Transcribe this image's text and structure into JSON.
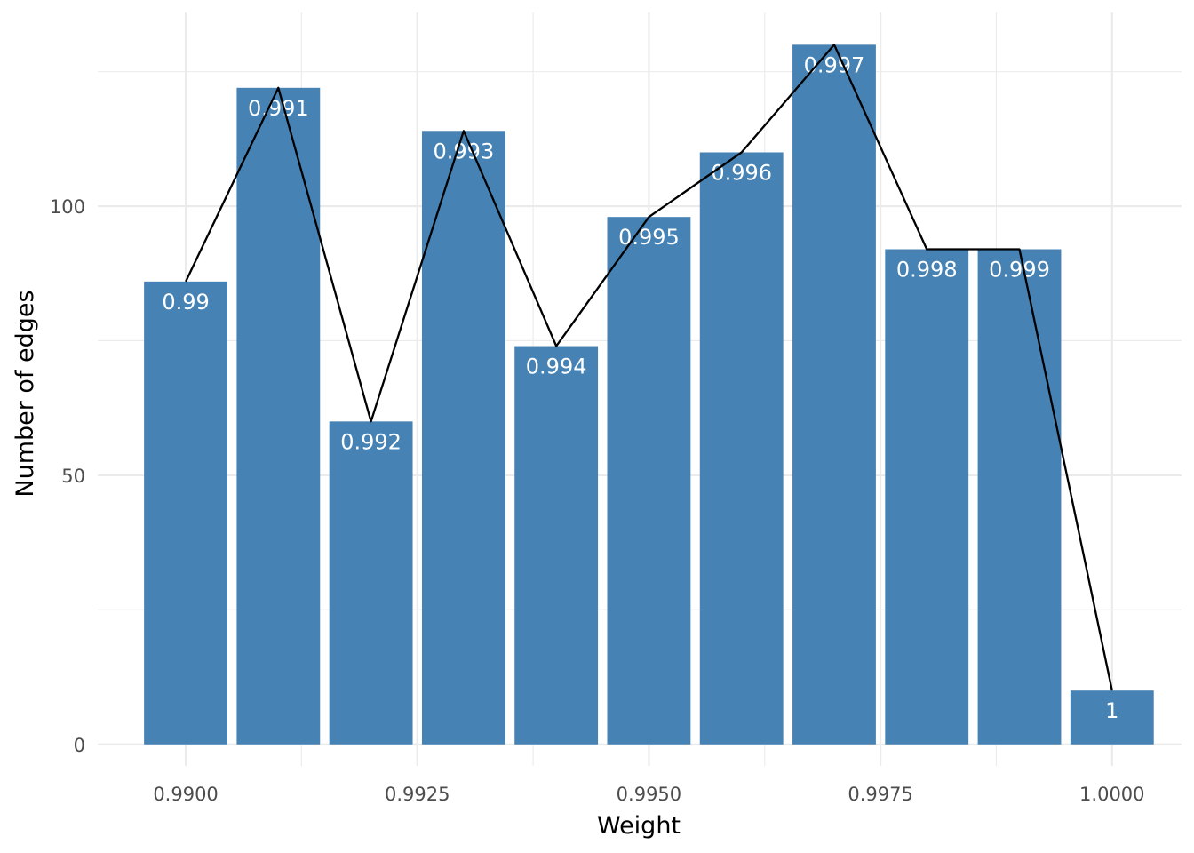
{
  "chart_data": {
    "type": "bar",
    "title": "",
    "xlabel": "Weight",
    "ylabel": "Number of edges",
    "x": [
      0.99,
      0.991,
      0.992,
      0.993,
      0.994,
      0.995,
      0.996,
      0.997,
      0.998,
      0.999,
      1.0
    ],
    "values": [
      86,
      122,
      60,
      114,
      74,
      98,
      110,
      130,
      92,
      92,
      10
    ],
    "bar_labels": [
      "0.99",
      "0.991",
      "0.992",
      "0.993",
      "0.994",
      "0.995",
      "0.996",
      "0.997",
      "0.998",
      "0.999",
      "1"
    ],
    "line_values": [
      86,
      122,
      60,
      114,
      74,
      98,
      110,
      130,
      92,
      92,
      10
    ],
    "xlim": [
      0.98905,
      1.00075
    ],
    "ylim": [
      -4,
      136
    ],
    "x_ticks": [
      0.99,
      0.9925,
      0.995,
      0.9975,
      1.0
    ],
    "x_tick_labels": [
      "0.9900",
      "0.9925",
      "0.9950",
      "0.9975",
      "1.0000"
    ],
    "x_minor_ticks": [
      0.99125,
      0.99375,
      0.99625,
      0.99875
    ],
    "y_ticks": [
      0,
      50,
      100
    ],
    "y_tick_labels": [
      "0",
      "50",
      "100"
    ],
    "y_minor_ticks": [
      25,
      75,
      125
    ],
    "bar_width": 0.0009,
    "grid": true,
    "colors": {
      "bar": "#4682B4",
      "line": "#000000",
      "grid": "#EBEBEB"
    }
  }
}
